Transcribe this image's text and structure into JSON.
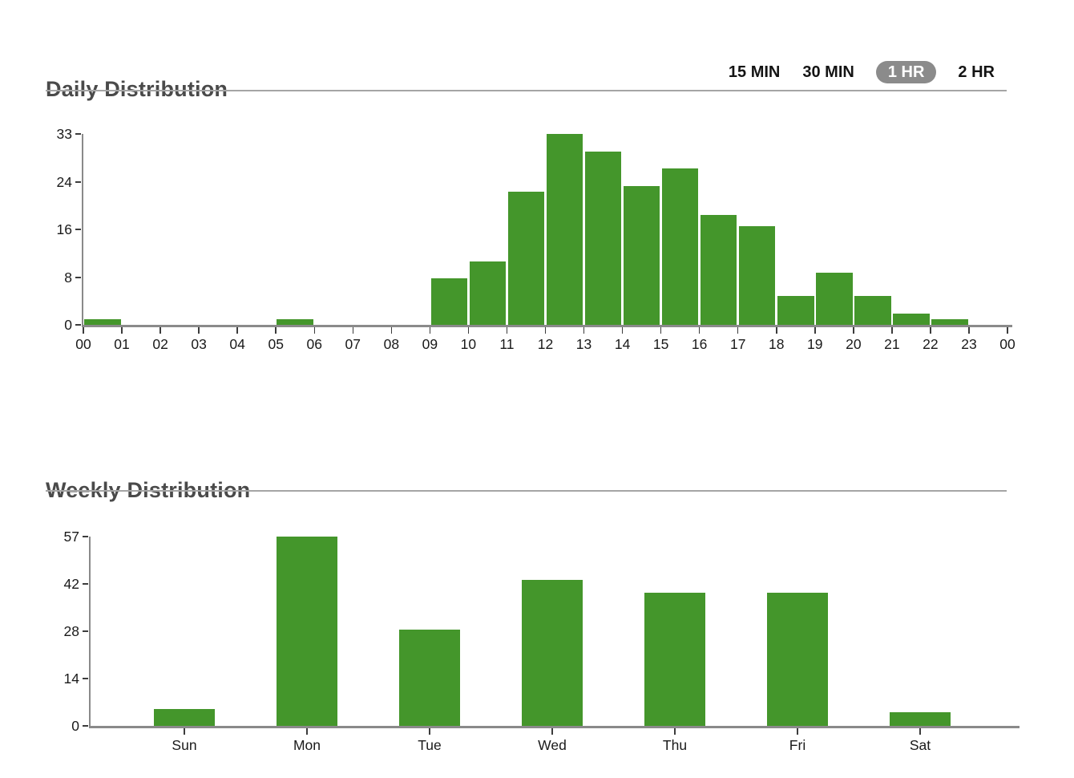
{
  "sections": {
    "daily": {
      "title": "Daily Distribution",
      "intervals": [
        {
          "label": "15 MIN",
          "selected": false
        },
        {
          "label": "30 MIN",
          "selected": false
        },
        {
          "label": "1 HR",
          "selected": true
        },
        {
          "label": "2 HR",
          "selected": false
        }
      ]
    },
    "weekly": {
      "title": "Weekly Distribution"
    }
  },
  "colors": {
    "bar_green": "#44962b",
    "axis_gray": "#8a8a8a",
    "tick_dark": "#3c3c3c",
    "text_dark": "#1a1a1a",
    "title_gray": "#4a4a4a",
    "divider_gray": "#a5a5a5",
    "pill_bg": "#8b8b8b",
    "pill_text": "#ffffff"
  },
  "chart_data": [
    {
      "id": "daily",
      "type": "bar",
      "title": "Daily Distribution",
      "bar_mode": "histogram",
      "categories": [
        "00",
        "01",
        "02",
        "03",
        "04",
        "05",
        "06",
        "07",
        "08",
        "09",
        "10",
        "11",
        "12",
        "13",
        "14",
        "15",
        "16",
        "17",
        "18",
        "19",
        "20",
        "21",
        "22",
        "23"
      ],
      "values": [
        1,
        0,
        0,
        0,
        0,
        1,
        0,
        0,
        0,
        8,
        11,
        23,
        33,
        30,
        24,
        27,
        19,
        17,
        5,
        9,
        5,
        2,
        1,
        0
      ],
      "x_tick_labels": [
        "00",
        "01",
        "02",
        "03",
        "04",
        "05",
        "06",
        "07",
        "08",
        "09",
        "10",
        "11",
        "12",
        "13",
        "14",
        "15",
        "16",
        "17",
        "18",
        "19",
        "20",
        "21",
        "22",
        "23",
        "00"
      ],
      "ylim": [
        0,
        33
      ],
      "y_tick_labels": [
        "0",
        "8",
        "16",
        "24",
        "33"
      ],
      "xlabel": "",
      "ylabel": "",
      "grid": false,
      "legend": false,
      "bar_color": "#44962b"
    },
    {
      "id": "weekly",
      "type": "bar",
      "title": "Weekly Distribution",
      "bar_mode": "centered",
      "categories": [
        "Sun",
        "Mon",
        "Tue",
        "Wed",
        "Thu",
        "Fri",
        "Sat"
      ],
      "values": [
        5,
        57,
        29,
        44,
        40,
        40,
        4
      ],
      "ylim": [
        0,
        57
      ],
      "y_tick_labels": [
        "0",
        "14",
        "28",
        "42",
        "57"
      ],
      "xlabel": "",
      "ylabel": "",
      "grid": false,
      "legend": false,
      "bar_color": "#44962b"
    }
  ]
}
